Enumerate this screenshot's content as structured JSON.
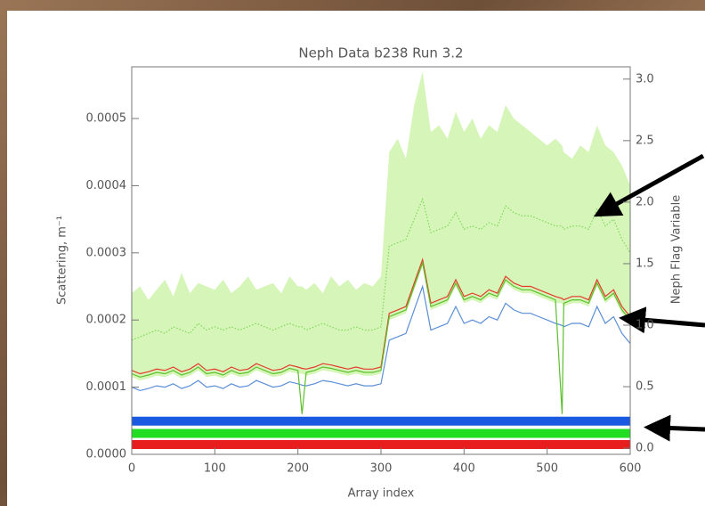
{
  "chart_data": {
    "type": "line",
    "title": "Neph Data b238 Run 3.2",
    "x_label": "Array index",
    "y_label": "Scattering, m⁻¹",
    "y2_label": "Neph Flag Variable",
    "x": [
      0,
      10,
      20,
      30,
      40,
      50,
      60,
      70,
      80,
      90,
      100,
      110,
      120,
      130,
      140,
      150,
      160,
      170,
      180,
      190,
      200,
      205,
      210,
      220,
      230,
      240,
      250,
      260,
      270,
      280,
      290,
      300,
      310,
      320,
      330,
      340,
      350,
      360,
      370,
      380,
      390,
      400,
      410,
      420,
      430,
      440,
      450,
      460,
      470,
      480,
      490,
      500,
      510,
      518,
      520,
      530,
      540,
      550,
      560,
      570,
      580,
      590,
      600
    ],
    "xlim": [
      0,
      600
    ],
    "xticks": [
      0,
      100,
      200,
      300,
      400,
      500,
      600
    ],
    "ylim": [
      0,
      0.000577
    ],
    "yticks": [
      {
        "value": 0,
        "label": "0.0000"
      },
      0.0001,
      0.0002,
      0.0003,
      0.0004,
      0.0005
    ],
    "y2lim": [
      -0.05,
      3.1
    ],
    "y2ticks": [
      {
        "value": 0,
        "label": "0.0"
      },
      0.5,
      {
        "value": 1,
        "label": "1.0"
      },
      1.5,
      {
        "value": 2,
        "label": "2.0"
      },
      2.5,
      {
        "value": 3,
        "label": "3.0"
      }
    ],
    "series": [
      {
        "type": "band",
        "color": "#d6f5b8",
        "low": [
          0.000115,
          0.00011,
          0.000113,
          0.000117,
          0.000115,
          0.00012,
          0.000113,
          0.000117,
          0.000125,
          0.000115,
          0.000117,
          0.000113,
          0.00012,
          0.000115,
          0.000117,
          0.000125,
          0.00012,
          0.000115,
          0.000117,
          0.000123,
          0.00012,
          0.00012,
          0.000117,
          0.00012,
          0.000125,
          0.000123,
          0.00012,
          0.000117,
          0.00012,
          0.000117,
          0.000117,
          0.00012,
          0.0002,
          0.000205,
          0.00021,
          0.000245,
          0.00028,
          0.000215,
          0.00022,
          0.000225,
          0.00025,
          0.000225,
          0.00023,
          0.000225,
          0.000235,
          0.00023,
          0.000255,
          0.000245,
          0.00024,
          0.00024,
          0.000235,
          0.00023,
          0.000225,
          0.000225,
          0.00022,
          0.000225,
          0.000225,
          0.00022,
          0.00025,
          0.000225,
          0.000235,
          0.00021,
          0.000195
        ],
        "high": [
          0.00024,
          0.00025,
          0.00023,
          0.000245,
          0.00026,
          0.000235,
          0.00027,
          0.00024,
          0.000255,
          0.00025,
          0.000245,
          0.00026,
          0.00024,
          0.00025,
          0.000265,
          0.000245,
          0.00025,
          0.000255,
          0.00024,
          0.000265,
          0.00025,
          0.00025,
          0.000245,
          0.000255,
          0.00024,
          0.000265,
          0.00025,
          0.00026,
          0.000245,
          0.000255,
          0.00025,
          0.000265,
          0.00045,
          0.00047,
          0.00044,
          0.00052,
          0.00057,
          0.00048,
          0.00049,
          0.00047,
          0.00051,
          0.00048,
          0.0005,
          0.00047,
          0.00049,
          0.00048,
          0.00052,
          0.0005,
          0.00049,
          0.00048,
          0.00047,
          0.00046,
          0.00047,
          0.00046,
          0.00045,
          0.00044,
          0.00046,
          0.00045,
          0.00049,
          0.00046,
          0.00045,
          0.00043,
          0.0004
        ]
      },
      {
        "color": "#7fd65a",
        "dash": true,
        "values": [
          0.00017,
          0.000175,
          0.00018,
          0.000185,
          0.00018,
          0.00019,
          0.000185,
          0.00018,
          0.000195,
          0.000185,
          0.00019,
          0.000185,
          0.00019,
          0.000185,
          0.00019,
          0.000195,
          0.00019,
          0.000185,
          0.00019,
          0.000195,
          0.00019,
          0.00019,
          0.000185,
          0.00019,
          0.000195,
          0.00019,
          0.000185,
          0.000185,
          0.00019,
          0.000185,
          0.000185,
          0.00019,
          0.00031,
          0.000315,
          0.00032,
          0.00035,
          0.00038,
          0.00033,
          0.000335,
          0.00034,
          0.00036,
          0.000335,
          0.00034,
          0.000335,
          0.000345,
          0.00034,
          0.00037,
          0.00036,
          0.000355,
          0.000355,
          0.00035,
          0.000345,
          0.00034,
          0.00034,
          0.000335,
          0.00034,
          0.00034,
          0.000335,
          0.000365,
          0.00034,
          0.00035,
          0.00032,
          0.0003
        ]
      },
      {
        "color": "#5b8fd6",
        "values": [
          0.0001,
          9.5e-05,
          9.8e-05,
          0.000102,
          0.0001,
          0.000105,
          9.8e-05,
          0.000102,
          0.00011,
          0.0001,
          0.000102,
          9.8e-05,
          0.000105,
          0.0001,
          0.000102,
          0.00011,
          0.000105,
          0.0001,
          0.000102,
          0.000108,
          0.000105,
          0.000103,
          0.000102,
          0.000105,
          0.00011,
          0.000108,
          0.000105,
          0.000102,
          0.000105,
          0.000102,
          0.000102,
          0.000105,
          0.00017,
          0.000175,
          0.00018,
          0.000215,
          0.00025,
          0.000185,
          0.00019,
          0.000195,
          0.00022,
          0.000195,
          0.0002,
          0.000195,
          0.000205,
          0.0002,
          0.000225,
          0.000215,
          0.00021,
          0.00021,
          0.000205,
          0.0002,
          0.000195,
          0.000192,
          0.00019,
          0.000195,
          0.000195,
          0.00019,
          0.00022,
          0.000195,
          0.000205,
          0.00018,
          0.000165
        ]
      },
      {
        "color": "#e23b2a",
        "values": [
          0.000125,
          0.00012,
          0.000123,
          0.000127,
          0.000125,
          0.00013,
          0.000123,
          0.000127,
          0.000135,
          0.000125,
          0.000127,
          0.000123,
          0.00013,
          0.000125,
          0.000127,
          0.000135,
          0.00013,
          0.000125,
          0.000127,
          0.000133,
          0.00013,
          0.000128,
          0.000127,
          0.00013,
          0.000135,
          0.000133,
          0.00013,
          0.000127,
          0.00013,
          0.000127,
          0.000127,
          0.00013,
          0.00021,
          0.000215,
          0.00022,
          0.000255,
          0.00029,
          0.000225,
          0.00023,
          0.000235,
          0.00026,
          0.000235,
          0.00024,
          0.000235,
          0.000245,
          0.00024,
          0.000265,
          0.000255,
          0.00025,
          0.00025,
          0.000245,
          0.00024,
          0.000235,
          0.000232,
          0.00023,
          0.000235,
          0.000235,
          0.00023,
          0.00026,
          0.000235,
          0.000245,
          0.00022,
          0.000205
        ]
      },
      {
        "color": "#5cc02c",
        "values": [
          0.00012,
          0.000115,
          0.000118,
          0.000122,
          0.00012,
          0.000125,
          0.000118,
          0.000122,
          0.00013,
          0.00012,
          0.000122,
          0.000118,
          0.000125,
          0.00012,
          0.000122,
          0.00013,
          0.000125,
          0.00012,
          0.000122,
          0.000128,
          0.000125,
          6e-05,
          0.000122,
          0.000125,
          0.00013,
          0.000128,
          0.000125,
          0.000122,
          0.000125,
          0.000122,
          0.000122,
          0.000125,
          0.000205,
          0.00021,
          0.000215,
          0.00025,
          0.000285,
          0.00022,
          0.000225,
          0.00023,
          0.000255,
          0.00023,
          0.000235,
          0.00023,
          0.00024,
          0.000235,
          0.00026,
          0.00025,
          0.000245,
          0.000245,
          0.00024,
          0.000235,
          0.00023,
          6e-05,
          0.000225,
          0.00023,
          0.00023,
          0.000225,
          0.000255,
          0.00023,
          0.00024,
          0.000215,
          0.0002
        ]
      },
      {
        "type": "flag",
        "axis": "y2",
        "color": "#1a5ae0",
        "x": [
          0,
          600
        ],
        "values": [
          0.22,
          0.22
        ]
      },
      {
        "type": "flag",
        "axis": "y2",
        "color": "#22dd22",
        "x": [
          0,
          600
        ],
        "values": [
          0.12,
          0.12
        ]
      },
      {
        "type": "flag",
        "axis": "y2",
        "color": "#e81e1e",
        "x": [
          0,
          600
        ],
        "values": [
          0.03,
          0.03
        ]
      }
    ]
  }
}
